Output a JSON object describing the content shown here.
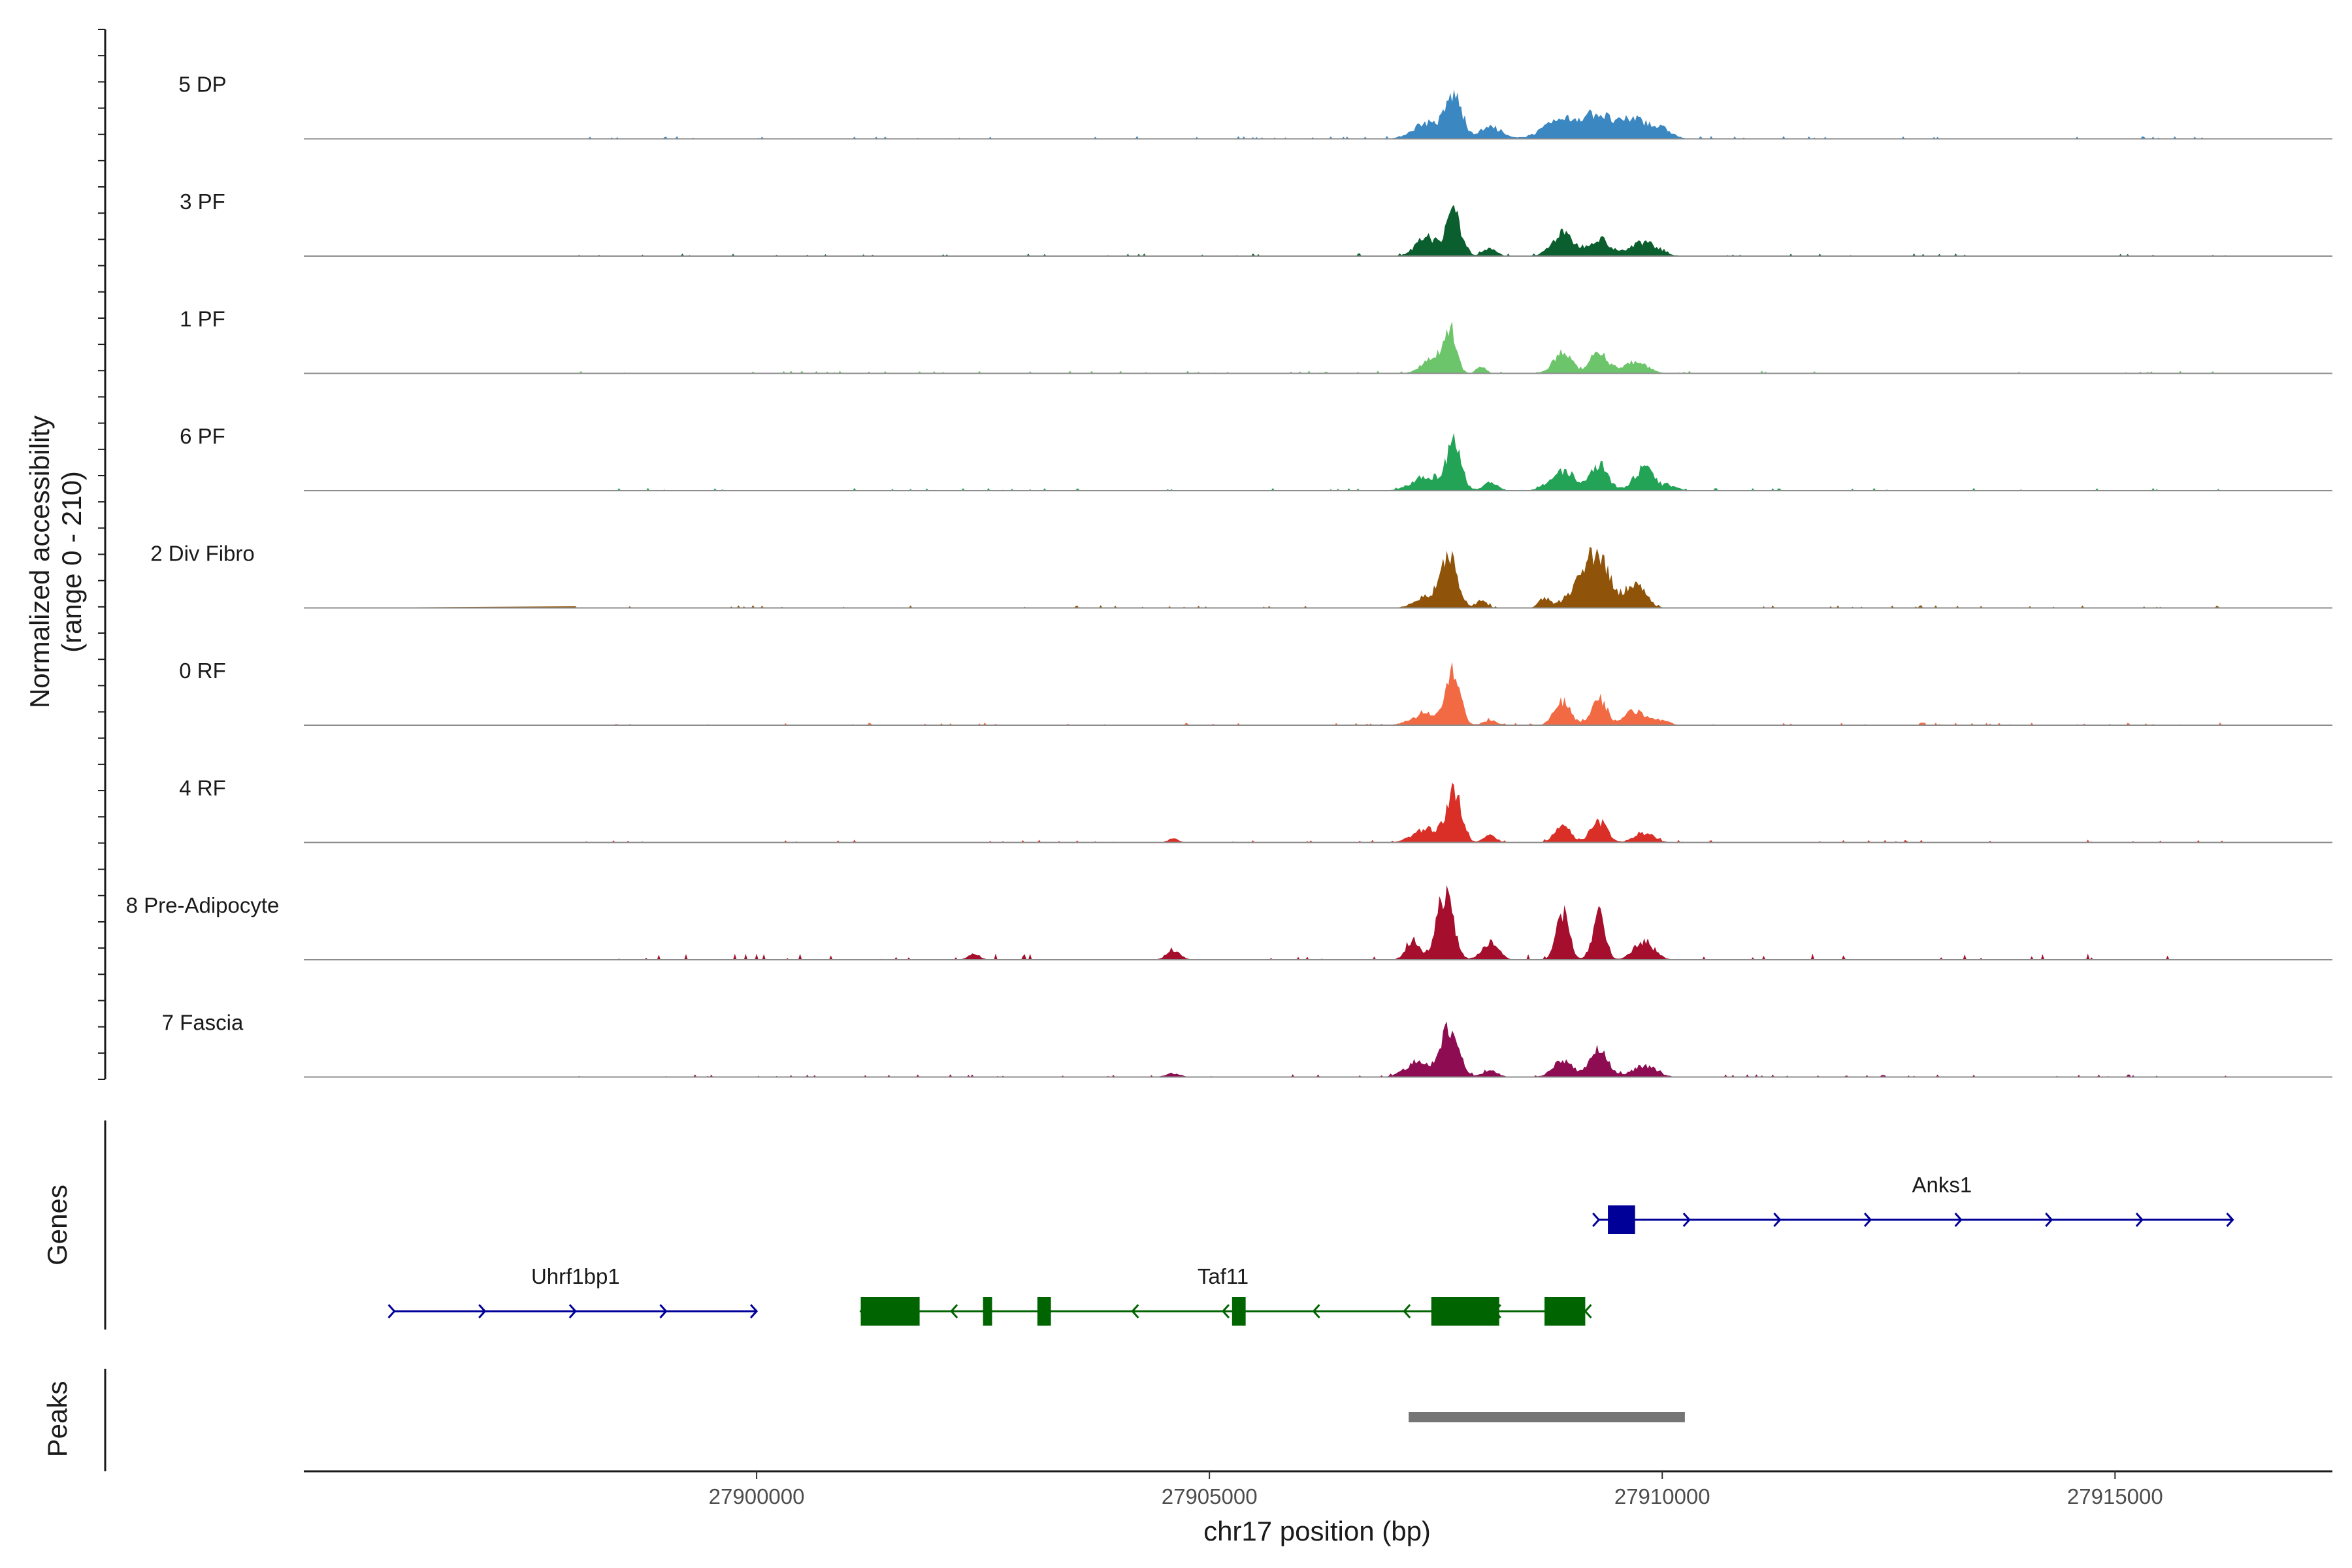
{
  "chart_data": {
    "type": "area",
    "title": "",
    "region": {
      "chromosome": "chr17",
      "start": 27895000,
      "end": 27917400
    },
    "xlabel": "chr17 position (bp)",
    "ylabel": "Normalized accessibility",
    "ylabel_range": "(range 0 - 210)",
    "ylim": [
      0,
      210
    ],
    "xticks": [
      27900000,
      27905000,
      27910000,
      27915000
    ],
    "xtick_labels": [
      "27900000",
      "27905000",
      "27910000",
      "27915000"
    ],
    "tracks": [
      {
        "name": "5 DP",
        "color": "#3a87c2",
        "peaks": [
          [
            27907700,
            90,
            90
          ],
          [
            27907400,
            35,
            150
          ],
          [
            27908100,
            25,
            120
          ],
          [
            27908900,
            40,
            200
          ],
          [
            27909300,
            48,
            160
          ],
          [
            27909700,
            42,
            140
          ],
          [
            27910000,
            20,
            110
          ]
        ]
      },
      {
        "name": "3 PF",
        "color": "#0b5f2e",
        "peaks": [
          [
            27907700,
            88,
            85
          ],
          [
            27907400,
            40,
            120
          ],
          [
            27908100,
            18,
            70
          ],
          [
            27908900,
            48,
            120
          ],
          [
            27909300,
            38,
            120
          ],
          [
            27909800,
            30,
            150
          ]
        ]
      },
      {
        "name": "1 PF",
        "color": "#6cc56a",
        "peaks": [
          [
            27907650,
            100,
            70
          ],
          [
            27907450,
            30,
            110
          ],
          [
            27908000,
            15,
            50
          ],
          [
            27908900,
            45,
            100
          ],
          [
            27909300,
            50,
            90
          ],
          [
            27909700,
            25,
            130
          ]
        ]
      },
      {
        "name": "6 PF",
        "color": "#23a356",
        "peaks": [
          [
            27907700,
            95,
            80
          ],
          [
            27907400,
            30,
            160
          ],
          [
            27908100,
            18,
            80
          ],
          [
            27908900,
            40,
            140
          ],
          [
            27909300,
            55,
            100
          ],
          [
            27909800,
            48,
            110
          ],
          [
            27910100,
            10,
            80
          ]
        ]
      },
      {
        "name": "2 Div Fibro",
        "color": "#8f5309",
        "peaks": [
          [
            27907650,
            110,
            90
          ],
          [
            27907400,
            25,
            130
          ],
          [
            27908000,
            15,
            60
          ],
          [
            27908700,
            20,
            60
          ],
          [
            27909100,
            45,
            150
          ],
          [
            27909300,
            100,
            120
          ],
          [
            27909700,
            55,
            110
          ]
        ]
      },
      {
        "name": "0 RF",
        "color": "#f26a44",
        "peaks": [
          [
            27907700,
            115,
            75
          ],
          [
            27907400,
            25,
            160
          ],
          [
            27908100,
            10,
            80
          ],
          [
            27908900,
            52,
            90
          ],
          [
            27909300,
            58,
            80
          ],
          [
            27909700,
            30,
            120
          ],
          [
            27910000,
            10,
            80
          ]
        ]
      },
      {
        "name": "4 RF",
        "color": "#d92f27",
        "peaks": [
          [
            27907700,
            110,
            80
          ],
          [
            27907400,
            30,
            150
          ],
          [
            27908100,
            15,
            70
          ],
          [
            27908900,
            35,
            90
          ],
          [
            27909300,
            45,
            90
          ],
          [
            27909800,
            20,
            110
          ],
          [
            27904600,
            8,
            60
          ]
        ]
      },
      {
        "name": "8 Pre-Adipocyte",
        "color": "#a50f2d",
        "peaks": [
          [
            27907600,
            140,
            90
          ],
          [
            27907250,
            35,
            80
          ],
          [
            27908100,
            40,
            90
          ],
          [
            27908900,
            105,
            70
          ],
          [
            27909300,
            98,
            70
          ],
          [
            27909800,
            40,
            110
          ],
          [
            27904600,
            18,
            80
          ],
          [
            27902400,
            15,
            60
          ]
        ]
      },
      {
        "name": "7 Fascia",
        "color": "#8d0c52",
        "peaks": [
          [
            27907650,
            100,
            100
          ],
          [
            27907300,
            30,
            140
          ],
          [
            27908100,
            15,
            80
          ],
          [
            27908900,
            35,
            110
          ],
          [
            27909300,
            55,
            100
          ],
          [
            27909800,
            25,
            130
          ],
          [
            27904600,
            8,
            80
          ]
        ]
      }
    ],
    "genes": [
      {
        "name": "Uhrf1bp1",
        "strand": "+",
        "color": "#000099",
        "start": 27896000,
        "end": 27900000,
        "exons": [],
        "row": 2
      },
      {
        "name": "Taf11",
        "strand": "-",
        "color": "#006400",
        "start": 27901150,
        "end": 27909150,
        "exons": [
          [
            27901150,
            27901800
          ],
          [
            27902500,
            27902600
          ],
          [
            27903100,
            27903250
          ],
          [
            27905250,
            27905400
          ],
          [
            27907450,
            27908200
          ],
          [
            27908700,
            27909150
          ]
        ],
        "row": 2
      },
      {
        "name": "Anks1",
        "strand": "+",
        "color": "#000099",
        "start": 27909300,
        "end": 27916300,
        "exons": [
          [
            27909400,
            27909700
          ]
        ],
        "row": 1
      }
    ],
    "genes_label": "Genes",
    "peaks_label": "Peaks",
    "peak_regions": [
      [
        27907200,
        27910250
      ]
    ]
  }
}
